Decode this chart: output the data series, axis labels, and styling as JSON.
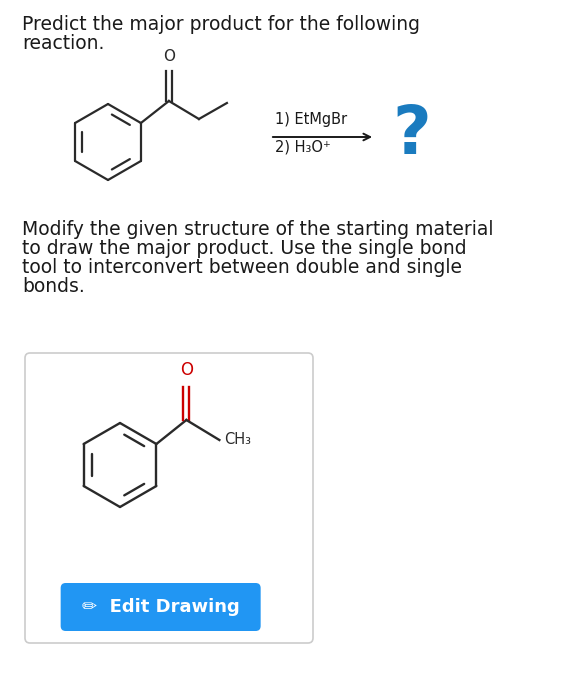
{
  "background_color": "#ffffff",
  "title_line1": "Predict the major product for the following",
  "title_line2": "reaction.",
  "title_fontsize": 13.5,
  "title_color": "#1a1a1a",
  "instruction_lines": [
    "Modify the given structure of the starting material",
    "to draw the major product. Use the single bond",
    "tool to interconvert between double and single",
    "bonds."
  ],
  "instruction_fontsize": 13.5,
  "instruction_color": "#1a1a1a",
  "reagent_line1": "1) EtMgBr",
  "reagent_line2": "2) H₃O⁺",
  "reagent_fontsize": 10.5,
  "question_mark": "?",
  "question_mark_color": "#1a7bbf",
  "question_mark_fontsize": 48,
  "arrow_color": "#1a1a1a",
  "box_edge_color": "#cccccc",
  "box_face_color": "#ffffff",
  "button_color": "#2196f3",
  "button_text": "•  Edit Drawing",
  "button_text_color": "#ffffff",
  "button_fontsize": 13,
  "bond_color_dark": "#2a2a2a",
  "bond_color_red": "#cc0000",
  "O_color_dark": "#2a2a2a",
  "O_color_red": "#cc0000",
  "CH3_color": "#2a2a2a"
}
